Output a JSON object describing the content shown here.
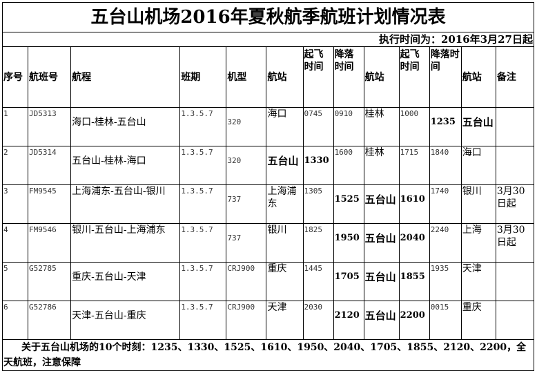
{
  "title": "五台山机场2016年夏秋航季航班计划情况表",
  "exec_time": "执行时间为：2016年3月27日起",
  "headers": [
    "序号",
    "航班号",
    "航程",
    "班期",
    "机型",
    "航站",
    "起飞时间",
    "降落时间",
    "航站",
    "起飞时间",
    "降落时间",
    "航站",
    "备注"
  ],
  "rows": [
    {
      "no": "1",
      "flight": "JD5313",
      "route": "海口-桂林-五台山",
      "days": "1.3.5.7",
      "type": "320",
      "st1": "海口",
      "dep1": "0745",
      "arr1": "0910",
      "st2": "桂林",
      "dep2": "1000",
      "arr2": "1235",
      "st3": "五台山",
      "note": ""
    },
    {
      "no": "2",
      "flight": "JD5314",
      "route": "五台山-桂林-海口",
      "days": "1.3.5.7",
      "type": "320",
      "st1": "五台山",
      "dep1": "1330",
      "arr1": "1600",
      "st2": "桂林",
      "dep2": "1715",
      "arr2": "1840",
      "st3": "海口",
      "note": ""
    },
    {
      "no": "3",
      "flight": "FM9545",
      "route": "上海浦东-五台山-银川",
      "days": "1.3.5.7",
      "type": "737",
      "st1": "上海浦东",
      "dep1": "1305",
      "arr1": "1525",
      "st2": "五台山",
      "dep2": "1610",
      "arr2": "1740",
      "st3": "银川",
      "note": "3月30日起"
    },
    {
      "no": "4",
      "flight": "FM9546",
      "route": "银川-五台山-上海浦东",
      "days": "1.3.5.7",
      "type": "737",
      "st1": "银川",
      "dep1": "1825",
      "arr1": "1950",
      "st2": "五台山",
      "dep2": "2040",
      "arr2": "2240",
      "st3": "上海",
      "note": "3月30日起"
    },
    {
      "no": "5",
      "flight": "G52785",
      "route": "重庆-五台山-天津",
      "days": "1.3.5.7",
      "type": "CRJ900",
      "st1": "重庆",
      "dep1": "1445",
      "arr1": "1705",
      "st2": "五台山",
      "dep2": "1855",
      "arr2": "1935",
      "st3": "天津",
      "note": ""
    },
    {
      "no": "6",
      "flight": "G52786",
      "route": "天津-五台山-重庆",
      "days": "1.3.5.7",
      "type": "CRJ900",
      "st1": "天津",
      "dep1": "2030",
      "arr1": "2120",
      "st2": "五台山",
      "dep2": "2200",
      "arr2": "0015",
      "st3": "重庆",
      "note": ""
    }
  ],
  "footnote": "关于五台山机场的10个时刻：1235、1330、1525、1610、1950、2040、1705、1855、2120、2200，全天航班，注意保障"
}
